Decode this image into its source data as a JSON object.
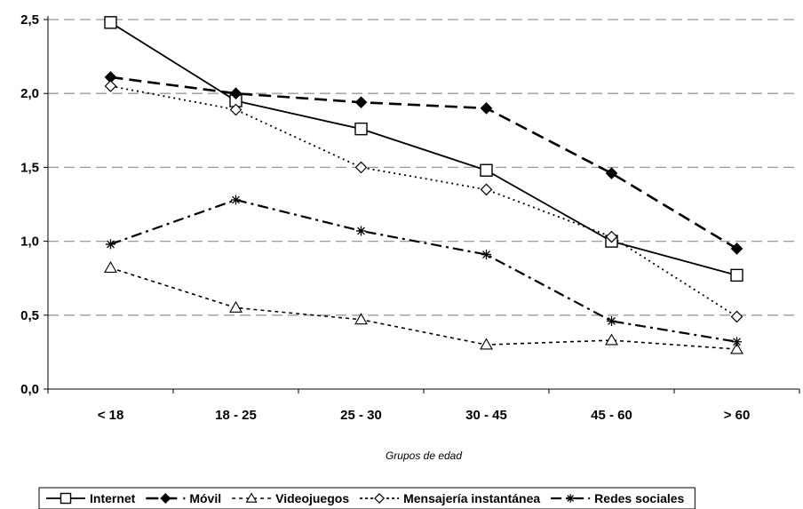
{
  "chart_data": {
    "type": "line",
    "title": "",
    "xlabel": "Grupos de edad",
    "ylabel": "",
    "ylim": [
      0,
      2.5
    ],
    "yticks": [
      "0,0",
      "0,5",
      "1,0",
      "1,5",
      "2,0",
      "2,5"
    ],
    "categories": [
      "< 18",
      "18 - 25",
      "25 - 30",
      "30 - 45",
      "45 - 60",
      "> 60"
    ],
    "grid": "horizontal dashed",
    "legend": "bottom",
    "series": [
      {
        "name": "Internet",
        "values": [
          2.48,
          1.95,
          1.76,
          1.48,
          1.0,
          0.77
        ],
        "marker": "square-open",
        "dash": "solid",
        "color": "#000000"
      },
      {
        "name": "Móvil",
        "values": [
          2.11,
          2.0,
          1.94,
          1.9,
          1.46,
          0.95
        ],
        "marker": "diamond-filled",
        "dash": "long-dash",
        "color": "#000000"
      },
      {
        "name": "Videojuegos",
        "values": [
          0.82,
          0.55,
          0.47,
          0.3,
          0.33,
          0.27
        ],
        "marker": "triangle-open",
        "dash": "short-dash",
        "color": "#000000"
      },
      {
        "name": "Mensajería instantánea",
        "values": [
          2.05,
          1.89,
          1.5,
          1.35,
          1.03,
          0.49
        ],
        "marker": "diamond-open",
        "dash": "dotted",
        "color": "#000000"
      },
      {
        "name": "Redes sociales",
        "values": [
          0.98,
          1.28,
          1.07,
          0.91,
          0.46,
          0.32
        ],
        "marker": "asterisk",
        "dash": "dash-dot",
        "color": "#000000"
      }
    ]
  }
}
